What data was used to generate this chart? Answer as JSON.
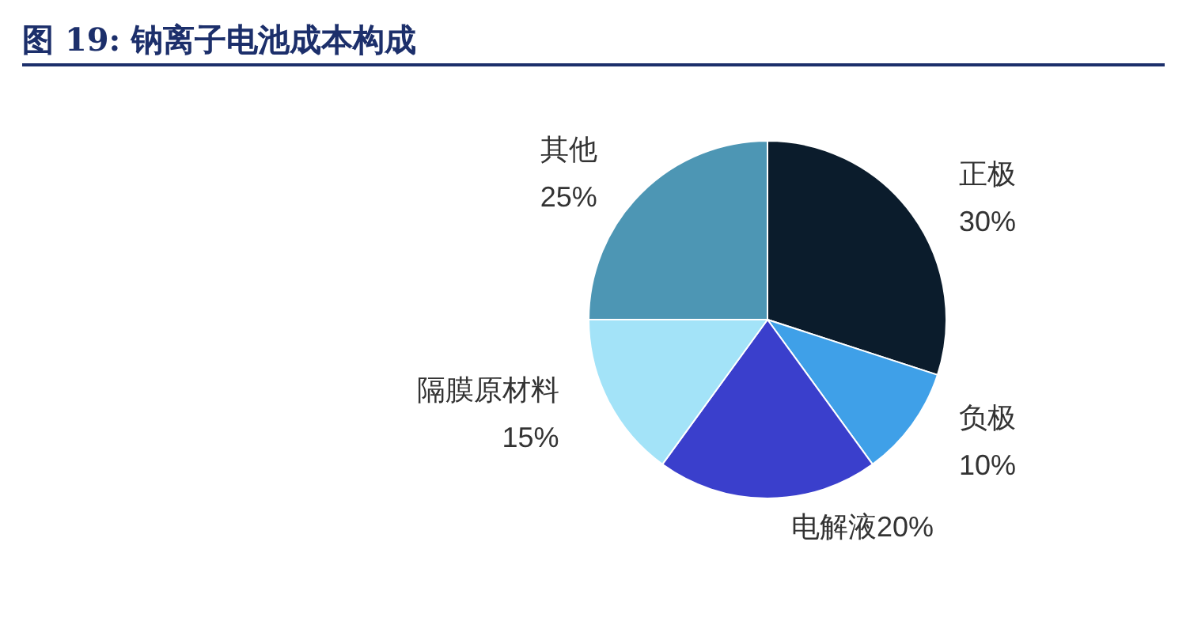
{
  "chart_data": {
    "type": "pie",
    "title": "图 19: 钠离子电池成本构成",
    "categories": [
      "正极",
      "负极",
      "电解液",
      "隔膜原材料",
      "其他"
    ],
    "values": [
      30,
      10,
      20,
      15,
      25
    ],
    "colors": [
      "#0b1c2c",
      "#3fa0e8",
      "#3a3fcc",
      "#a3e3f8",
      "#4d96b4"
    ],
    "value_labels": [
      "30%",
      "10%",
      "20%",
      "15%",
      "25%"
    ],
    "legend": false
  }
}
